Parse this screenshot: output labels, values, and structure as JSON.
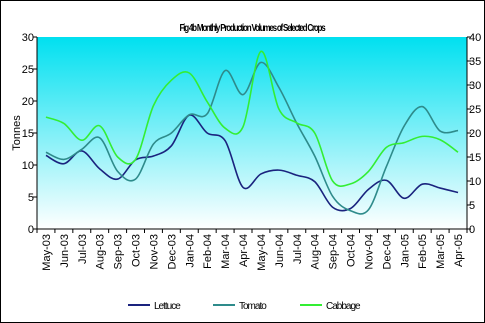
{
  "chart_data": {
    "type": "line",
    "title": "Fig 4b Monthly Production Volumes of Selected Crops",
    "ylabel": "Tonnes",
    "ylim": [
      0,
      30
    ],
    "y2lim": [
      0,
      40
    ],
    "yticks": [
      "0",
      "5",
      "10",
      "15",
      "20",
      "25",
      "30"
    ],
    "y2ticks": [
      "0",
      "5",
      "10",
      "15",
      "20",
      "25",
      "30",
      "35",
      "40"
    ],
    "categories": [
      "May-03",
      "Jun-03",
      "Jul-03",
      "Aug-03",
      "Sep-03",
      "Oct-03",
      "Nov-03",
      "Dec-03",
      "Jan-04",
      "Feb-04",
      "Mar-04",
      "Apr-04",
      "May-04",
      "Jun-04",
      "Jul-04",
      "Aug-04",
      "Sep-04",
      "Oct-04",
      "Nov-04",
      "Dec-04",
      "Jan-05",
      "Feb-05",
      "Mar-05",
      "Apr-05"
    ],
    "series": [
      {
        "name": "Lettuce",
        "axis": "left",
        "color": "#1a237e",
        "values": [
          11.5,
          10.2,
          12.2,
          9.4,
          7.8,
          10.8,
          11.4,
          13.0,
          17.8,
          15.0,
          13.8,
          6.5,
          8.6,
          9.2,
          8.4,
          7.4,
          3.4,
          3.2,
          6.2,
          7.6,
          4.8,
          7.0,
          6.4,
          5.7
        ]
      },
      {
        "name": "Tomato",
        "axis": "right",
        "color": "#2e8b8b",
        "values": [
          16.0,
          14.5,
          16.6,
          19.0,
          12.0,
          10.4,
          17.7,
          20.0,
          23.8,
          24.0,
          33.0,
          28.0,
          34.7,
          29.5,
          22.0,
          15.2,
          6.8,
          3.8,
          4.0,
          13.0,
          21.5,
          25.5,
          20.4,
          20.5
        ]
      },
      {
        "name": "Cabbage",
        "axis": "right",
        "color": "#33ee33",
        "values": [
          23.3,
          22.0,
          18.5,
          21.5,
          15.0,
          14.5,
          25.7,
          31.0,
          32.5,
          26.5,
          21.0,
          21.3,
          37.0,
          25.0,
          22.1,
          20.0,
          10.0,
          9.4,
          12.0,
          17.0,
          18.0,
          19.3,
          18.6,
          16.0
        ]
      }
    ],
    "legend": "bottom",
    "grid": false
  }
}
